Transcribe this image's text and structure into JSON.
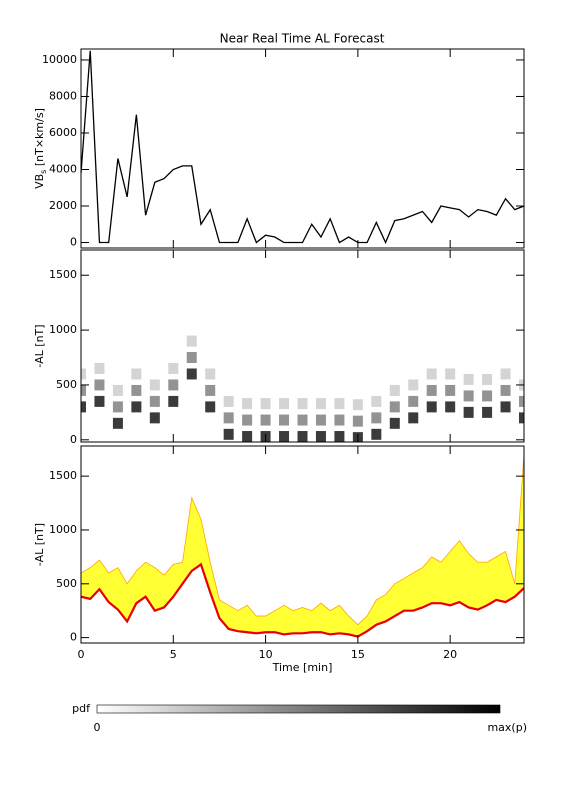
{
  "chart_data": [
    {
      "type": "line",
      "title": "Near Real Time AL Forecast",
      "ylabel": {
        "main": "VB",
        "sub": "s",
        "unit": " [nT×km/s]"
      },
      "color": "#000000",
      "x": [
        0,
        0.5,
        1,
        1.5,
        2,
        2.5,
        3,
        3.5,
        4,
        4.5,
        5,
        5.5,
        6,
        6.5,
        7,
        7.5,
        8,
        8.5,
        9,
        9.5,
        10,
        10.5,
        11,
        11.5,
        12,
        12.5,
        13,
        13.5,
        14,
        14.5,
        15,
        15.5,
        16,
        16.5,
        17,
        17.5,
        18,
        18.5,
        19,
        19.5,
        20,
        20.5,
        21,
        21.5,
        22,
        22.5,
        23,
        23.5,
        24
      ],
      "values": [
        3800,
        10500,
        0,
        0,
        4600,
        2500,
        7000,
        1500,
        3300,
        3500,
        4000,
        4200,
        4200,
        1000,
        1800,
        0,
        0,
        0,
        1300,
        0,
        400,
        300,
        0,
        0,
        0,
        1000,
        300,
        1300,
        0,
        300,
        0,
        0,
        1100,
        0,
        1200,
        1300,
        1500,
        1700,
        1100,
        2000,
        1900,
        1800,
        1400,
        1800,
        1700,
        1500,
        2400,
        1800,
        2000
      ],
      "xlim": [
        0,
        24
      ],
      "xticks": [
        0,
        5,
        10,
        15,
        20
      ],
      "ylim": [
        -300,
        10600
      ],
      "yticks": [
        0,
        2000,
        4000,
        6000,
        8000,
        10000
      ]
    },
    {
      "type": "heatmap",
      "ylabel": "-AL [nT]",
      "x": [
        0,
        1,
        2,
        3,
        4,
        5,
        6,
        7,
        8,
        9,
        10,
        11,
        12,
        13,
        14,
        15,
        16,
        17,
        18,
        19,
        20,
        21,
        22,
        23,
        24,
        0,
        1,
        2,
        3,
        4,
        5,
        6,
        7,
        8,
        9,
        10,
        11,
        12,
        13,
        14,
        15,
        16,
        17,
        18,
        19,
        20,
        21,
        22,
        23,
        24,
        0,
        1,
        2,
        3,
        4,
        5,
        6,
        7,
        8,
        9,
        10,
        11,
        12,
        13,
        14,
        15,
        16,
        17,
        18,
        19,
        20,
        21,
        22,
        23,
        24
      ],
      "y": [
        300,
        350,
        150,
        300,
        200,
        350,
        600,
        300,
        50,
        30,
        30,
        30,
        30,
        30,
        30,
        20,
        50,
        150,
        200,
        300,
        300,
        250,
        250,
        300,
        200,
        450,
        500,
        300,
        450,
        350,
        500,
        750,
        450,
        200,
        180,
        180,
        180,
        180,
        180,
        180,
        170,
        200,
        300,
        350,
        450,
        450,
        400,
        400,
        450,
        350,
        600,
        650,
        450,
        600,
        500,
        650,
        900,
        600,
        350,
        330,
        330,
        330,
        330,
        330,
        330,
        320,
        350,
        450,
        500,
        600,
        600,
        550,
        550,
        600,
        500
      ],
      "p": [
        0.9,
        0.9,
        0.9,
        0.9,
        0.9,
        0.9,
        0.9,
        0.9,
        0.9,
        0.9,
        0.9,
        0.9,
        0.9,
        0.9,
        0.9,
        0.9,
        0.9,
        0.9,
        0.9,
        0.9,
        0.9,
        0.9,
        0.9,
        0.9,
        0.9,
        0.5,
        0.5,
        0.5,
        0.5,
        0.5,
        0.5,
        0.5,
        0.5,
        0.5,
        0.5,
        0.5,
        0.5,
        0.5,
        0.5,
        0.5,
        0.5,
        0.5,
        0.5,
        0.5,
        0.5,
        0.5,
        0.5,
        0.5,
        0.5,
        0.5,
        0.2,
        0.2,
        0.2,
        0.2,
        0.2,
        0.2,
        0.2,
        0.2,
        0.2,
        0.2,
        0.2,
        0.2,
        0.2,
        0.2,
        0.2,
        0.2,
        0.2,
        0.2,
        0.2,
        0.2,
        0.2,
        0.2,
        0.2,
        0.2,
        0.2
      ],
      "xlim": [
        0,
        24
      ],
      "xticks": [
        0,
        5,
        10,
        15,
        20
      ],
      "ylim": [
        -20,
        1730
      ],
      "yticks": [
        0,
        500,
        1000,
        1500
      ]
    },
    {
      "type": "band",
      "ylabel": "-AL [nT]",
      "xlabel": "Time [min]",
      "x": [
        0,
        0.5,
        1,
        1.5,
        2,
        2.5,
        3,
        3.5,
        4,
        4.5,
        5,
        5.5,
        6,
        6.5,
        7,
        7.5,
        8,
        8.5,
        9,
        9.5,
        10,
        10.5,
        11,
        11.5,
        12,
        12.5,
        13,
        13.5,
        14,
        14.5,
        15,
        15.5,
        16,
        16.5,
        17,
        17.5,
        18,
        18.5,
        19,
        19.5,
        20,
        20.5,
        21,
        21.5,
        22,
        22.5,
        23,
        23.5,
        24
      ],
      "series": [
        {
          "color": "#e80000",
          "values": [
            380,
            360,
            450,
            330,
            260,
            150,
            320,
            380,
            250,
            280,
            380,
            500,
            620,
            680,
            420,
            180,
            80,
            60,
            50,
            40,
            50,
            50,
            30,
            40,
            40,
            50,
            50,
            30,
            40,
            30,
            10,
            60,
            120,
            150,
            200,
            250,
            250,
            280,
            320,
            320,
            300,
            330,
            280,
            260,
            300,
            350,
            330,
            380,
            460
          ]
        },
        {
          "color": "#ffff33",
          "edge_color": "#ffa500",
          "values": [
            600,
            650,
            720,
            600,
            650,
            500,
            620,
            700,
            650,
            580,
            680,
            700,
            1300,
            1100,
            700,
            350,
            300,
            250,
            300,
            200,
            200,
            250,
            300,
            250,
            280,
            250,
            320,
            250,
            300,
            200,
            120,
            200,
            350,
            400,
            500,
            550,
            600,
            650,
            750,
            700,
            800,
            900,
            780,
            700,
            700,
            750,
            800,
            500,
            1700
          ]
        }
      ],
      "xlim": [
        0,
        24
      ],
      "xticks": [
        0,
        5,
        10,
        15,
        20
      ],
      "ylim": [
        -50,
        1780
      ],
      "yticks": [
        0,
        500,
        1000,
        1500
      ]
    },
    {
      "type": "colorbar",
      "label": "pdf",
      "min_label": "0",
      "max_label": "max(p)"
    }
  ]
}
